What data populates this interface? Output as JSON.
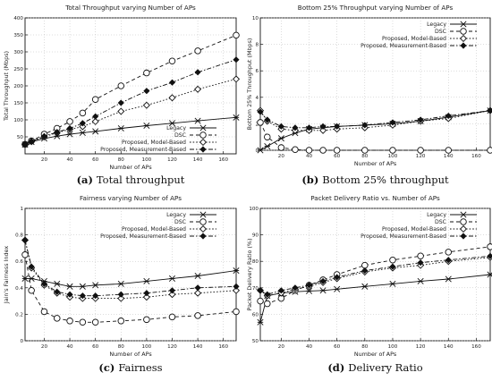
{
  "figure": {
    "legend_entries": [
      "Legacy",
      "DSC",
      "Proposed, Model-Based",
      "Proposed, Measurement-Based"
    ]
  },
  "chart_data": [
    {
      "panel_letter": "(a)",
      "caption": "Total throughput",
      "type": "line",
      "title": "Total Throughput varying Number of APs",
      "xlabel": "Number of APs",
      "ylabel": "Total Throughput (Mbps)",
      "xlim": [
        5,
        170
      ],
      "ylim": [
        0,
        400
      ],
      "xticks": [
        20,
        40,
        60,
        80,
        100,
        120,
        140,
        160
      ],
      "yticks": [
        50,
        100,
        150,
        200,
        250,
        300,
        350,
        400
      ],
      "grid": true,
      "legend_position": "bottom-right",
      "series": [
        {
          "name": "Legacy",
          "x": [
            5,
            10,
            20,
            30,
            40,
            50,
            60,
            80,
            100,
            120,
            140,
            170
          ],
          "y": [
            27,
            35,
            45,
            52,
            58,
            62,
            66,
            75,
            83,
            90,
            97,
            107
          ]
        },
        {
          "name": "DSC",
          "x": [
            5,
            10,
            20,
            30,
            40,
            50,
            60,
            80,
            100,
            120,
            140,
            170
          ],
          "y": [
            28,
            38,
            58,
            75,
            95,
            120,
            160,
            200,
            238,
            273,
            303,
            349
          ]
        },
        {
          "name": "Proposed, Model-Based",
          "x": [
            5,
            10,
            20,
            30,
            40,
            50,
            60,
            80,
            100,
            120,
            140,
            170
          ],
          "y": [
            28,
            36,
            50,
            62,
            72,
            80,
            95,
            125,
            143,
            165,
            190,
            220
          ]
        },
        {
          "name": "Proposed, Measurement-Based",
          "x": [
            5,
            10,
            20,
            30,
            40,
            50,
            60,
            80,
            100,
            120,
            140,
            170
          ],
          "y": [
            28,
            37,
            52,
            64,
            75,
            90,
            110,
            150,
            185,
            210,
            240,
            277
          ]
        }
      ]
    },
    {
      "panel_letter": "(b)",
      "caption": "Bottom 25% throughput",
      "type": "line",
      "title": "Bottom 25% Throughput varying Number of APs",
      "xlabel": "Number of APs",
      "ylabel": "Bottom 25% Throughput (Mbps)",
      "xlim": [
        5,
        170
      ],
      "ylim": [
        0,
        10
      ],
      "xticks": [
        20,
        40,
        60,
        80,
        100,
        120,
        140,
        160
      ],
      "yticks": [
        0,
        2,
        4,
        6,
        8,
        10
      ],
      "grid": true,
      "legend_position": "top-right",
      "series": [
        {
          "name": "Legacy",
          "x": [
            5,
            10,
            20,
            30,
            40,
            50,
            60,
            80,
            100,
            120,
            140,
            170
          ],
          "y": [
            0,
            0.3,
            0.9,
            1.3,
            1.6,
            1.7,
            1.8,
            1.9,
            2.0,
            2.2,
            2.5,
            3.0
          ]
        },
        {
          "name": "DSC",
          "x": [
            5,
            10,
            20,
            30,
            40,
            50,
            60,
            80,
            100,
            120,
            140,
            170
          ],
          "y": [
            2.1,
            1.0,
            0.2,
            0.05,
            0,
            0,
            0,
            0,
            0,
            0,
            0,
            0
          ]
        },
        {
          "name": "Proposed, Model-Based",
          "x": [
            5,
            10,
            20,
            30,
            40,
            50,
            60,
            80,
            100,
            120,
            140,
            170
          ],
          "y": [
            3.0,
            2.2,
            1.6,
            1.5,
            1.5,
            1.5,
            1.6,
            1.7,
            1.9,
            2.2,
            2.4,
            3.0
          ]
        },
        {
          "name": "Proposed, Measurement-Based",
          "x": [
            5,
            10,
            20,
            30,
            40,
            50,
            60,
            80,
            100,
            120,
            140,
            170
          ],
          "y": [
            2.9,
            2.3,
            1.8,
            1.7,
            1.7,
            1.8,
            1.8,
            1.9,
            2.1,
            2.3,
            2.6,
            3.0
          ]
        }
      ]
    },
    {
      "panel_letter": "(c)",
      "caption": "Fairness",
      "type": "line",
      "title": "Fairness varying Number of APs",
      "xlabel": "Number of APs",
      "ylabel": "Jain's Fairness Index",
      "xlim": [
        5,
        170
      ],
      "ylim": [
        0,
        1
      ],
      "xticks": [
        20,
        40,
        60,
        80,
        100,
        120,
        140,
        160
      ],
      "yticks": [
        0,
        0.2,
        0.4,
        0.6,
        0.8,
        1
      ],
      "grid": true,
      "legend_position": "top-right",
      "series": [
        {
          "name": "Legacy",
          "x": [
            5,
            10,
            20,
            30,
            40,
            50,
            60,
            80,
            100,
            120,
            140,
            170
          ],
          "y": [
            0.47,
            0.47,
            0.45,
            0.43,
            0.41,
            0.41,
            0.42,
            0.43,
            0.45,
            0.47,
            0.49,
            0.53
          ]
        },
        {
          "name": "DSC",
          "x": [
            5,
            10,
            20,
            30,
            40,
            50,
            60,
            80,
            100,
            120,
            140,
            170
          ],
          "y": [
            0.65,
            0.38,
            0.22,
            0.17,
            0.15,
            0.14,
            0.14,
            0.15,
            0.16,
            0.18,
            0.19,
            0.22
          ]
        },
        {
          "name": "Proposed, Model-Based",
          "x": [
            5,
            10,
            20,
            30,
            40,
            50,
            60,
            80,
            100,
            120,
            140,
            170
          ],
          "y": [
            0.76,
            0.55,
            0.42,
            0.36,
            0.33,
            0.32,
            0.32,
            0.32,
            0.33,
            0.35,
            0.36,
            0.38
          ]
        },
        {
          "name": "Proposed, Measurement-Based",
          "x": [
            5,
            10,
            20,
            30,
            40,
            50,
            60,
            80,
            100,
            120,
            140,
            170
          ],
          "y": [
            0.76,
            0.56,
            0.43,
            0.37,
            0.35,
            0.34,
            0.34,
            0.35,
            0.36,
            0.38,
            0.4,
            0.41
          ]
        }
      ]
    },
    {
      "panel_letter": "(d)",
      "caption": "Delivery Ratio",
      "type": "line",
      "title": "Packet Delivery Ratio vs. Number of APs",
      "xlabel": "Number of APs",
      "ylabel": "Packet Delivery Ratio (%)",
      "xlim": [
        5,
        170
      ],
      "ylim": [
        50,
        100
      ],
      "xticks": [
        20,
        40,
        60,
        80,
        100,
        120,
        140,
        160
      ],
      "yticks": [
        50,
        60,
        70,
        80,
        90,
        100
      ],
      "grid": true,
      "legend_position": "top-right",
      "series": [
        {
          "name": "Legacy",
          "x": [
            5,
            10,
            20,
            30,
            40,
            50,
            60,
            80,
            100,
            120,
            140,
            170
          ],
          "y": [
            57,
            67,
            68,
            68.5,
            68.8,
            69,
            69.5,
            70.5,
            71.5,
            72.5,
            73.3,
            75
          ]
        },
        {
          "name": "DSC",
          "x": [
            5,
            10,
            20,
            30,
            40,
            50,
            60,
            80,
            100,
            120,
            140,
            170
          ],
          "y": [
            65,
            64,
            66,
            69,
            71,
            73,
            75,
            78.5,
            80.5,
            82,
            83.5,
            85.5
          ]
        },
        {
          "name": "Proposed, Model-Based",
          "x": [
            5,
            10,
            20,
            30,
            40,
            50,
            60,
            80,
            100,
            120,
            140,
            170
          ],
          "y": [
            69,
            67,
            68,
            69.5,
            70.5,
            72,
            73.5,
            76,
            77.5,
            78.5,
            80,
            81.5
          ]
        },
        {
          "name": "Proposed, Measurement-Based",
          "x": [
            5,
            10,
            20,
            30,
            40,
            50,
            60,
            80,
            100,
            120,
            140,
            170
          ],
          "y": [
            69,
            67.5,
            69,
            70,
            71,
            72.5,
            74,
            76.5,
            78,
            79.5,
            80.5,
            82
          ]
        }
      ]
    }
  ]
}
